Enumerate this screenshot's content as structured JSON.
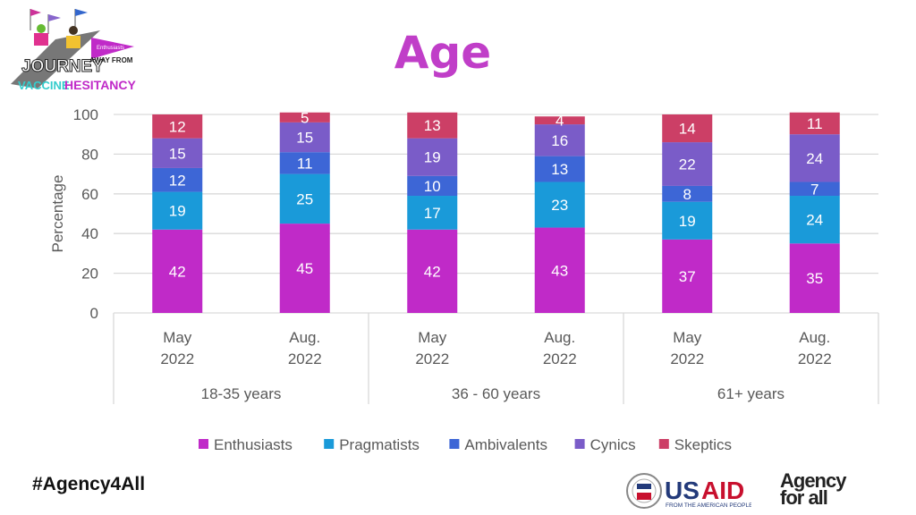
{
  "title": "Age",
  "hashtag": "#Agency4All",
  "logos": {
    "journey": "JOURNEY AWAY FROM VACCINE HESITANCY",
    "journey_flag": "Enthusiasts",
    "usaid": "USAID",
    "usaid_tagline": "FROM THE AMERICAN PEOPLE",
    "agency": "Agency for all"
  },
  "chart_data": {
    "type": "bar",
    "stacked": true,
    "ylabel": "Percentage",
    "ylim": [
      0,
      100
    ],
    "yticks": [
      0,
      20,
      40,
      60,
      80,
      100
    ],
    "grid": true,
    "legend_position": "bottom",
    "groups": [
      "18-35 years",
      "36 - 60 years",
      "61+ years"
    ],
    "categories": [
      {
        "line1": "May",
        "line2": "2022",
        "group": "18-35 years"
      },
      {
        "line1": "Aug.",
        "line2": "2022",
        "group": "18-35 years"
      },
      {
        "line1": "May",
        "line2": "2022",
        "group": "36 - 60 years"
      },
      {
        "line1": "Aug.",
        "line2": "2022",
        "group": "36 - 60 years"
      },
      {
        "line1": "May",
        "line2": "2022",
        "group": "61+ years"
      },
      {
        "line1": "Aug.",
        "line2": "2022",
        "group": "61+ years"
      }
    ],
    "series": [
      {
        "name": "Enthusiasts",
        "color": "#c02ac8",
        "values": [
          42,
          45,
          42,
          43,
          37,
          35
        ]
      },
      {
        "name": "Pragmatists",
        "color": "#1a9ad9",
        "values": [
          19,
          25,
          17,
          23,
          19,
          24
        ]
      },
      {
        "name": "Ambivalents",
        "color": "#3d66d6",
        "values": [
          12,
          11,
          10,
          13,
          8,
          7
        ]
      },
      {
        "name": "Cynics",
        "color": "#7a5cc8",
        "values": [
          15,
          15,
          19,
          16,
          22,
          24
        ]
      },
      {
        "name": "Skeptics",
        "color": "#cc3f66",
        "values": [
          12,
          5,
          13,
          4,
          14,
          11
        ]
      }
    ]
  }
}
